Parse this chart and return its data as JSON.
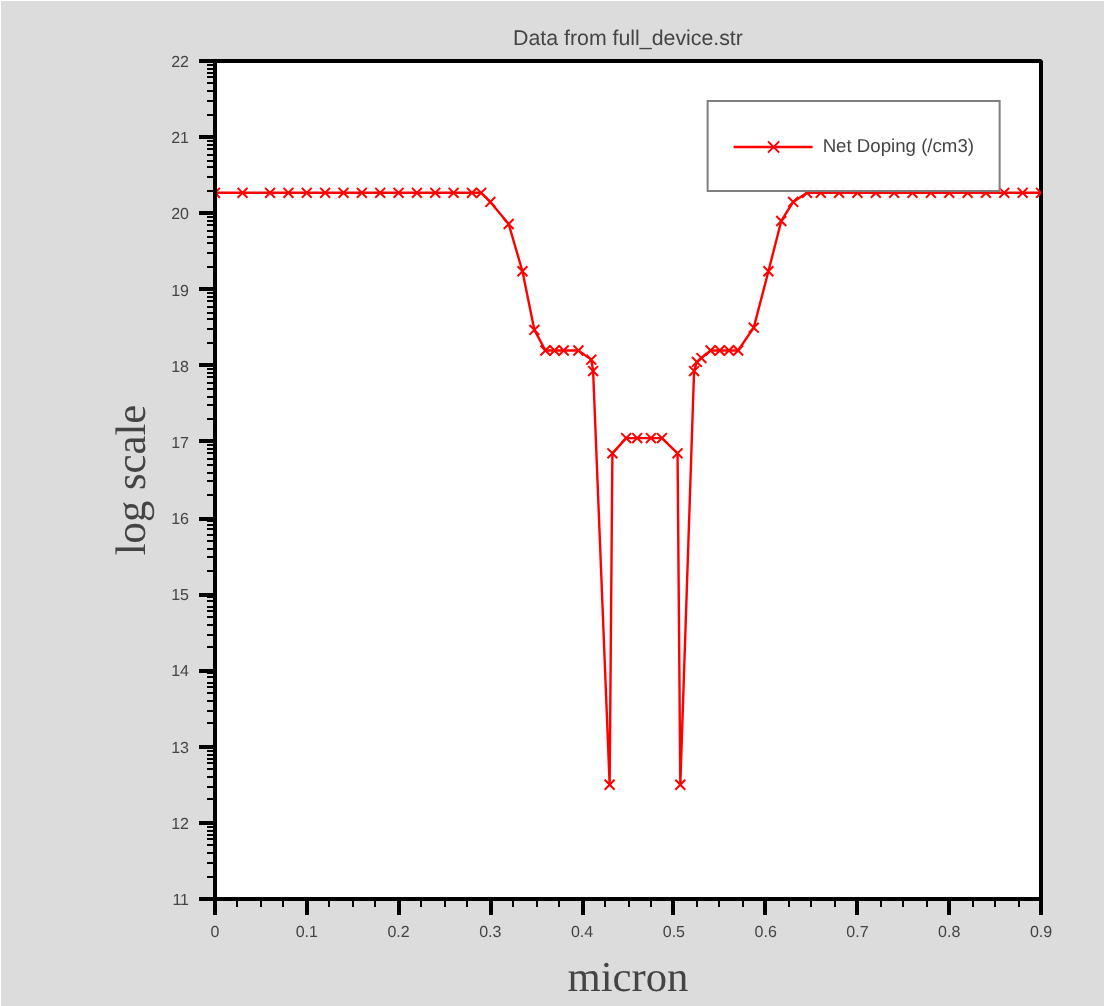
{
  "chart_data": {
    "type": "line",
    "title": "Data from full_device.str",
    "xlabel": "micron",
    "ylabel": "log scale",
    "xlim": [
      0,
      0.9
    ],
    "ylim": [
      11,
      22
    ],
    "xticks": [
      0,
      0.1,
      0.2,
      0.3,
      0.4,
      0.5,
      0.6,
      0.7,
      0.8,
      0.9
    ],
    "yticks": [
      11,
      12,
      13,
      14,
      15,
      16,
      17,
      18,
      19,
      20,
      21,
      22
    ],
    "marker": "cross",
    "line_style": "solid",
    "grid": false,
    "legend": "top right",
    "series": [
      {
        "name": "Net Doping (/cm3)",
        "color": "#ff0000",
        "x": [
          0,
          0.03,
          0.06,
          0.08,
          0.1,
          0.12,
          0.14,
          0.16,
          0.18,
          0.2,
          0.22,
          0.24,
          0.26,
          0.28,
          0.29,
          0.3,
          0.32,
          0.335,
          0.348,
          0.36,
          0.37,
          0.38,
          0.396,
          0.41,
          0.412,
          0.43,
          0.433,
          0.448,
          0.46,
          0.475,
          0.487,
          0.504,
          0.507,
          0.522,
          0.525,
          0.53,
          0.54,
          0.55,
          0.56,
          0.57,
          0.587,
          0.603,
          0.617,
          0.63,
          0.645,
          0.66,
          0.68,
          0.7,
          0.72,
          0.74,
          0.76,
          0.78,
          0.8,
          0.82,
          0.84,
          0.86,
          0.88,
          0.9
        ],
        "values": [
          20.27,
          20.27,
          20.27,
          20.27,
          20.27,
          20.27,
          20.27,
          20.27,
          20.27,
          20.27,
          20.27,
          20.27,
          20.27,
          20.27,
          20.27,
          20.15,
          19.86,
          19.24,
          18.47,
          18.2,
          18.2,
          18.2,
          18.2,
          18.08,
          17.93,
          12.5,
          16.85,
          17.05,
          17.05,
          17.05,
          17.05,
          16.85,
          12.5,
          17.93,
          18.05,
          18.1,
          18.2,
          18.2,
          18.2,
          18.2,
          18.5,
          19.24,
          19.9,
          20.15,
          20.27,
          20.27,
          20.27,
          20.27,
          20.27,
          20.27,
          20.27,
          20.27,
          20.27,
          20.27,
          20.27,
          20.27,
          20.27,
          20.27
        ]
      }
    ]
  }
}
